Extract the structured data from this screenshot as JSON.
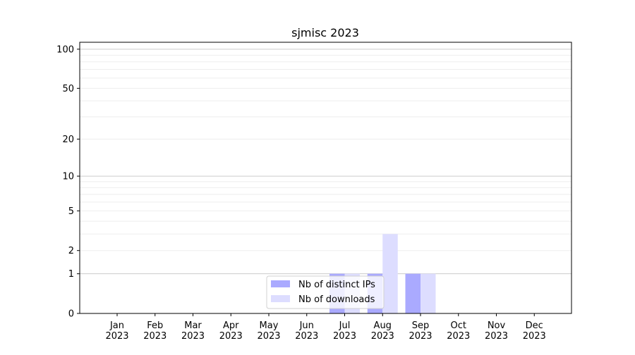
{
  "chart_data": {
    "type": "bar",
    "title": "sjmisc 2023",
    "xlabel": "",
    "ylabel": "",
    "yscale": "log(1+y)",
    "ylim": [
      0,
      113
    ],
    "yticks": [
      0,
      1,
      2,
      5,
      10,
      20,
      50,
      100
    ],
    "grid": true,
    "legend_placement": "lower center",
    "categories": [
      "Jan\n2023",
      "Feb\n2023",
      "Mar\n2023",
      "Apr\n2023",
      "May\n2023",
      "Jun\n2023",
      "Jul\n2023",
      "Aug\n2023",
      "Sep\n2023",
      "Oct\n2023",
      "Nov\n2023",
      "Dec\n2023"
    ],
    "series": [
      {
        "name": "Nb of distinct IPs",
        "color": "#aaaaff",
        "values": [
          0,
          0,
          0,
          0,
          0,
          0,
          1,
          1,
          1,
          0,
          0,
          0
        ]
      },
      {
        "name": "Nb of downloads",
        "color": "#ddddff",
        "values": [
          0,
          0,
          0,
          0,
          0,
          0,
          1,
          3,
          1,
          0,
          0,
          0
        ]
      }
    ]
  }
}
